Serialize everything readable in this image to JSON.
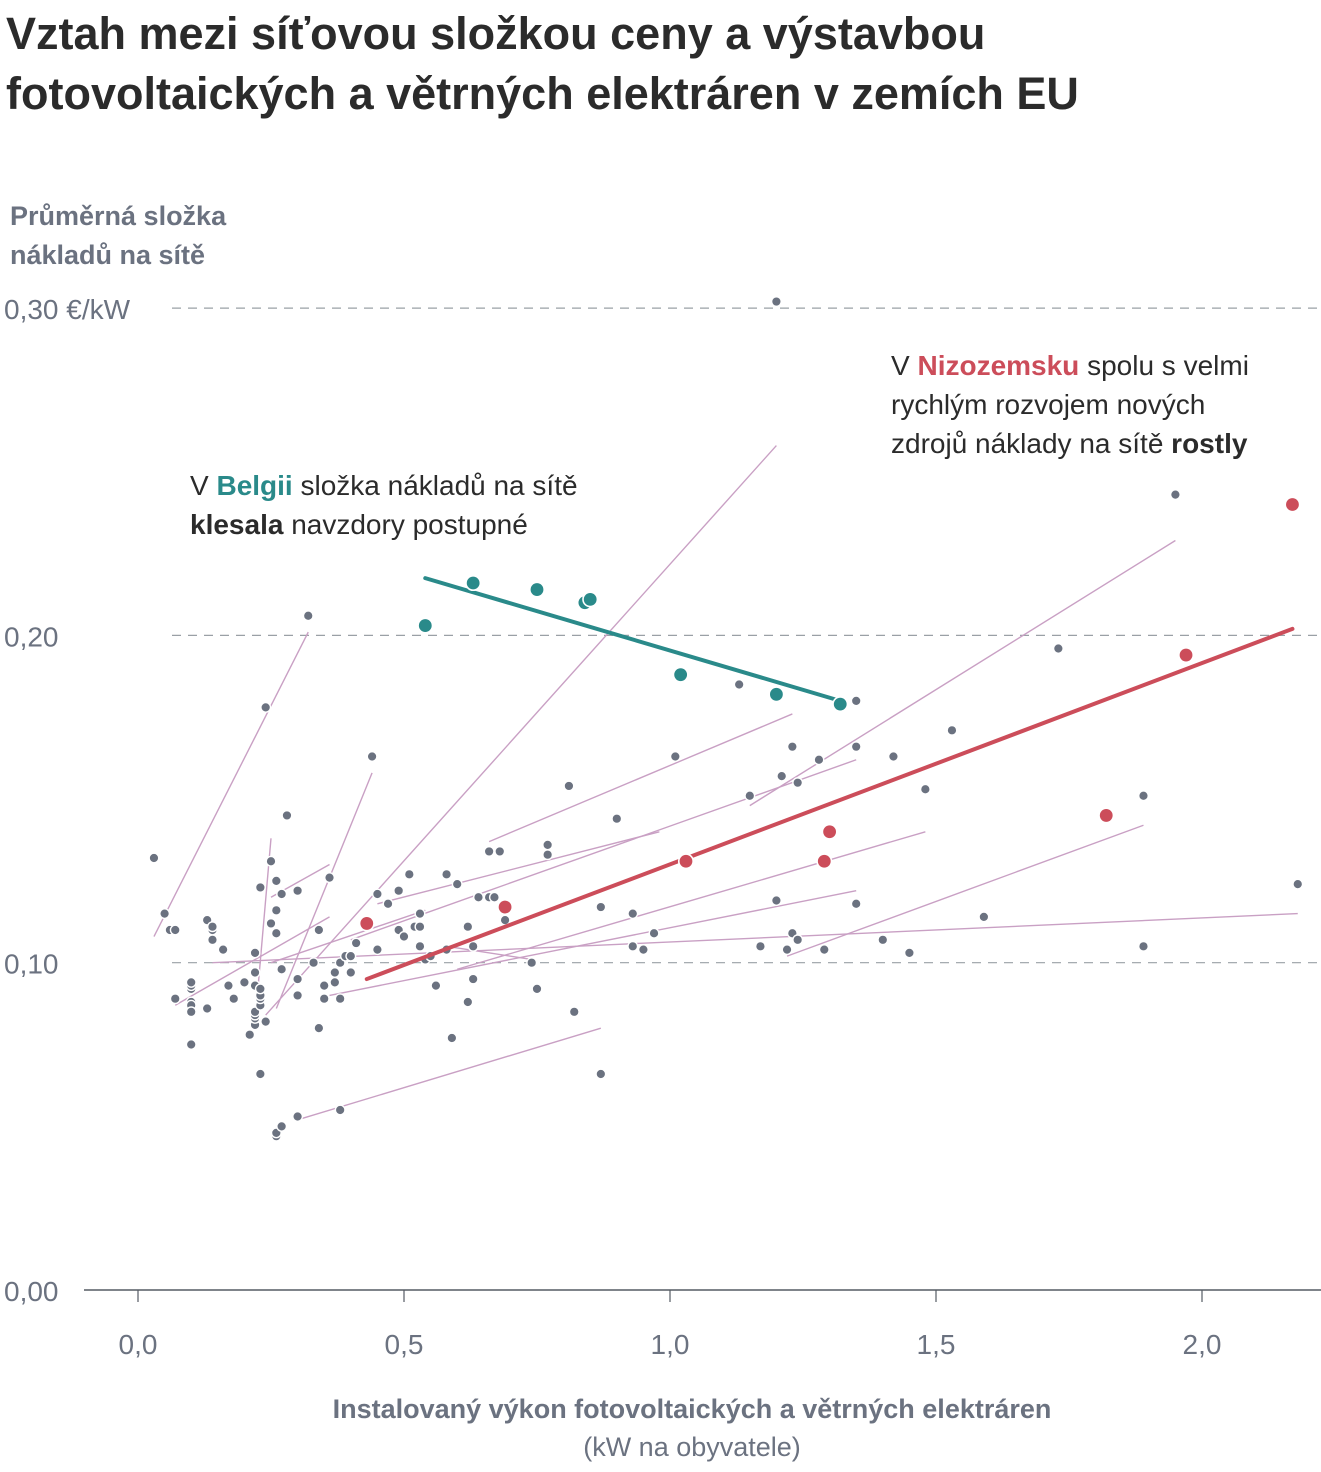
{
  "title_line1": "Vztah mezi síťovou složkou ceny a výstavbou",
  "title_line2": "fotovoltaických a větrných elektráren v zemích EU",
  "colors": {
    "text": "#2b2b2b",
    "axis_text": "#6b7280",
    "points": "#6b7280",
    "country_lines": "#c9a0c4",
    "belgium": "#2a8a8a",
    "netherlands": "#cc4d5a",
    "grid": "#9aa0a6"
  },
  "annotations": {
    "nl": {
      "l1_pre": "V ",
      "l1_hl": "Nizozemsku",
      "l1_post": " spolu s velmi",
      "l2": "rychlým rozvojem nových",
      "l3_pre": "zdrojů náklady na sítě ",
      "l3_bold": "rostly"
    },
    "be": {
      "l1_pre": "V ",
      "l1_hl": "Belgii",
      "l1_post": " složka nákladů na sítě",
      "l2_bold": "klesala",
      "l2_post": " navzdory postupné"
    }
  },
  "chart_data": {
    "type": "scatter",
    "title": "Vztah mezi síťovou složkou ceny a výstavbou fotovoltaických a větrných elektráren v zemích EU",
    "ylabel_line1": "Průměrná složka",
    "ylabel_line2": "nákladů na sítě",
    "xlabel": "Instalovaný výkon fotovoltaických a větrných elektráren",
    "xlabel_unit": "(kW na obyvatele)",
    "xlim": [
      -0.1,
      2.23
    ],
    "ylim": [
      0,
      0.3
    ],
    "x_ticks": [
      "0,0",
      "0,5",
      "1,0",
      "1,5",
      "2,0"
    ],
    "x_tick_values": [
      0,
      0.5,
      1.0,
      1.5,
      2.0
    ],
    "y_ticks": [
      "0,30 €/kW",
      "0,20",
      "0,10",
      "0,00"
    ],
    "y_tick_values": [
      0.3,
      0.2,
      0.1,
      0.0
    ],
    "grid": "horizontal dashed",
    "belgium": {
      "points": [
        [
          0.54,
          0.203
        ],
        [
          0.63,
          0.216
        ],
        [
          0.75,
          0.214
        ],
        [
          0.84,
          0.21
        ],
        [
          0.85,
          0.211
        ],
        [
          1.02,
          0.188
        ],
        [
          1.2,
          0.182
        ],
        [
          1.32,
          0.179
        ]
      ],
      "trend": [
        [
          0.54,
          0.2175
        ],
        [
          1.32,
          0.18
        ]
      ]
    },
    "netherlands": {
      "points": [
        [
          0.43,
          0.112
        ],
        [
          0.69,
          0.117
        ],
        [
          1.03,
          0.131
        ],
        [
          1.29,
          0.131
        ],
        [
          1.3,
          0.14
        ],
        [
          1.82,
          0.145
        ],
        [
          1.97,
          0.194
        ],
        [
          2.17,
          0.24
        ]
      ],
      "trend": [
        [
          0.43,
          0.095
        ],
        [
          2.17,
          0.202
        ]
      ]
    },
    "other_points": [
      [
        1.2,
        0.302
      ],
      [
        0.32,
        0.206
      ],
      [
        0.24,
        0.178
      ],
      [
        0.44,
        0.163
      ],
      [
        0.03,
        0.132
      ],
      [
        0.05,
        0.115
      ],
      [
        0.06,
        0.11
      ],
      [
        0.07,
        0.11
      ],
      [
        0.13,
        0.113
      ],
      [
        0.14,
        0.107
      ],
      [
        0.14,
        0.11
      ],
      [
        0.14,
        0.111
      ],
      [
        0.16,
        0.104
      ],
      [
        0.07,
        0.089
      ],
      [
        0.1,
        0.092
      ],
      [
        0.1,
        0.093
      ],
      [
        0.1,
        0.094
      ],
      [
        0.1,
        0.088
      ],
      [
        0.1,
        0.087
      ],
      [
        0.1,
        0.085
      ],
      [
        0.1,
        0.075
      ],
      [
        0.13,
        0.086
      ],
      [
        0.17,
        0.093
      ],
      [
        0.18,
        0.089
      ],
      [
        0.2,
        0.094
      ],
      [
        0.21,
        0.078
      ],
      [
        0.22,
        0.081
      ],
      [
        0.22,
        0.083
      ],
      [
        0.22,
        0.084
      ],
      [
        0.22,
        0.085
      ],
      [
        0.23,
        0.087
      ],
      [
        0.23,
        0.089
      ],
      [
        0.23,
        0.09
      ],
      [
        0.22,
        0.097
      ],
      [
        0.22,
        0.103
      ],
      [
        0.22,
        0.093
      ],
      [
        0.23,
        0.092
      ],
      [
        0.24,
        0.082
      ],
      [
        0.23,
        0.066
      ],
      [
        0.23,
        0.123
      ],
      [
        0.25,
        0.131
      ],
      [
        0.25,
        0.112
      ],
      [
        0.26,
        0.125
      ],
      [
        0.26,
        0.109
      ],
      [
        0.26,
        0.116
      ],
      [
        0.27,
        0.098
      ],
      [
        0.27,
        0.121
      ],
      [
        0.28,
        0.145
      ],
      [
        0.3,
        0.122
      ],
      [
        0.3,
        0.09
      ],
      [
        0.3,
        0.095
      ],
      [
        0.26,
        0.047
      ],
      [
        0.26,
        0.048
      ],
      [
        0.27,
        0.05
      ],
      [
        0.3,
        0.053
      ],
      [
        0.33,
        0.1
      ],
      [
        0.34,
        0.11
      ],
      [
        0.34,
        0.08
      ],
      [
        0.35,
        0.089
      ],
      [
        0.35,
        0.093
      ],
      [
        0.36,
        0.126
      ],
      [
        0.37,
        0.097
      ],
      [
        0.37,
        0.094
      ],
      [
        0.38,
        0.1
      ],
      [
        0.38,
        0.089
      ],
      [
        0.39,
        0.102
      ],
      [
        0.4,
        0.097
      ],
      [
        0.4,
        0.102
      ],
      [
        0.41,
        0.106
      ],
      [
        0.38,
        0.055
      ],
      [
        0.45,
        0.121
      ],
      [
        0.45,
        0.104
      ],
      [
        0.47,
        0.118
      ],
      [
        0.49,
        0.122
      ],
      [
        0.49,
        0.11
      ],
      [
        0.5,
        0.108
      ],
      [
        0.51,
        0.127
      ],
      [
        0.52,
        0.111
      ],
      [
        0.53,
        0.111
      ],
      [
        0.53,
        0.105
      ],
      [
        0.53,
        0.115
      ],
      [
        0.54,
        0.101
      ],
      [
        0.55,
        0.102
      ],
      [
        0.56,
        0.093
      ],
      [
        0.58,
        0.127
      ],
      [
        0.58,
        0.104
      ],
      [
        0.59,
        0.077
      ],
      [
        0.6,
        0.124
      ],
      [
        0.62,
        0.088
      ],
      [
        0.63,
        0.095
      ],
      [
        0.62,
        0.111
      ],
      [
        0.63,
        0.105
      ],
      [
        0.64,
        0.12
      ],
      [
        0.66,
        0.134
      ],
      [
        0.66,
        0.12
      ],
      [
        0.67,
        0.12
      ],
      [
        0.68,
        0.134
      ],
      [
        0.69,
        0.113
      ],
      [
        0.74,
        0.1
      ],
      [
        0.75,
        0.092
      ],
      [
        0.77,
        0.133
      ],
      [
        0.77,
        0.136
      ],
      [
        0.81,
        0.154
      ],
      [
        0.82,
        0.085
      ],
      [
        0.87,
        0.117
      ],
      [
        0.87,
        0.066
      ],
      [
        0.9,
        0.144
      ],
      [
        0.93,
        0.115
      ],
      [
        0.93,
        0.105
      ],
      [
        0.95,
        0.104
      ],
      [
        0.97,
        0.109
      ],
      [
        1.01,
        0.163
      ],
      [
        1.13,
        0.185
      ],
      [
        1.15,
        0.151
      ],
      [
        1.17,
        0.105
      ],
      [
        1.2,
        0.119
      ],
      [
        1.21,
        0.157
      ],
      [
        1.22,
        0.104
      ],
      [
        1.23,
        0.166
      ],
      [
        1.23,
        0.109
      ],
      [
        1.24,
        0.107
      ],
      [
        1.24,
        0.155
      ],
      [
        1.28,
        0.162
      ],
      [
        1.29,
        0.104
      ],
      [
        1.35,
        0.166
      ],
      [
        1.35,
        0.118
      ],
      [
        1.4,
        0.107
      ],
      [
        1.42,
        0.163
      ],
      [
        1.45,
        0.103
      ],
      [
        1.48,
        0.153
      ],
      [
        1.53,
        0.171
      ],
      [
        1.59,
        0.114
      ],
      [
        1.73,
        0.196
      ],
      [
        1.89,
        0.151
      ],
      [
        1.89,
        0.105
      ],
      [
        1.95,
        0.243
      ],
      [
        2.18,
        0.124
      ],
      [
        1.35,
        0.18
      ]
    ],
    "country_trend_lines": [
      [
        [
          0.03,
          0.108
        ],
        [
          0.32,
          0.201
        ]
      ],
      [
        [
          0.24,
          0.084
        ],
        [
          1.2,
          0.258
        ]
      ],
      [
        [
          0.26,
          0.086
        ],
        [
          0.44,
          0.158
        ]
      ],
      [
        [
          0.22,
          0.082
        ],
        [
          0.25,
          0.138
        ]
      ],
      [
        [
          0.07,
          0.087
        ],
        [
          0.36,
          0.114
        ]
      ],
      [
        [
          0.14,
          0.1
        ],
        [
          2.18,
          0.115
        ]
      ],
      [
        [
          0.25,
          0.12
        ],
        [
          0.36,
          0.13
        ]
      ],
      [
        [
          0.25,
          0.1
        ],
        [
          0.54,
          0.116
        ]
      ],
      [
        [
          0.3,
          0.052
        ],
        [
          0.87,
          0.08
        ]
      ],
      [
        [
          0.45,
          0.118
        ],
        [
          0.98,
          0.14
        ]
      ],
      [
        [
          0.66,
          0.137
        ],
        [
          1.23,
          0.176
        ]
      ],
      [
        [
          0.36,
          0.09
        ],
        [
          1.35,
          0.122
        ]
      ],
      [
        [
          0.4,
          0.107
        ],
        [
          1.35,
          0.162
        ]
      ],
      [
        [
          0.6,
          0.098
        ],
        [
          1.48,
          0.14
        ]
      ],
      [
        [
          1.15,
          0.148
        ],
        [
          1.95,
          0.229
        ]
      ],
      [
        [
          1.22,
          0.102
        ],
        [
          1.89,
          0.142
        ]
      ],
      [
        [
          0.58,
          0.105
        ],
        [
          0.74,
          0.101
        ]
      ]
    ]
  }
}
